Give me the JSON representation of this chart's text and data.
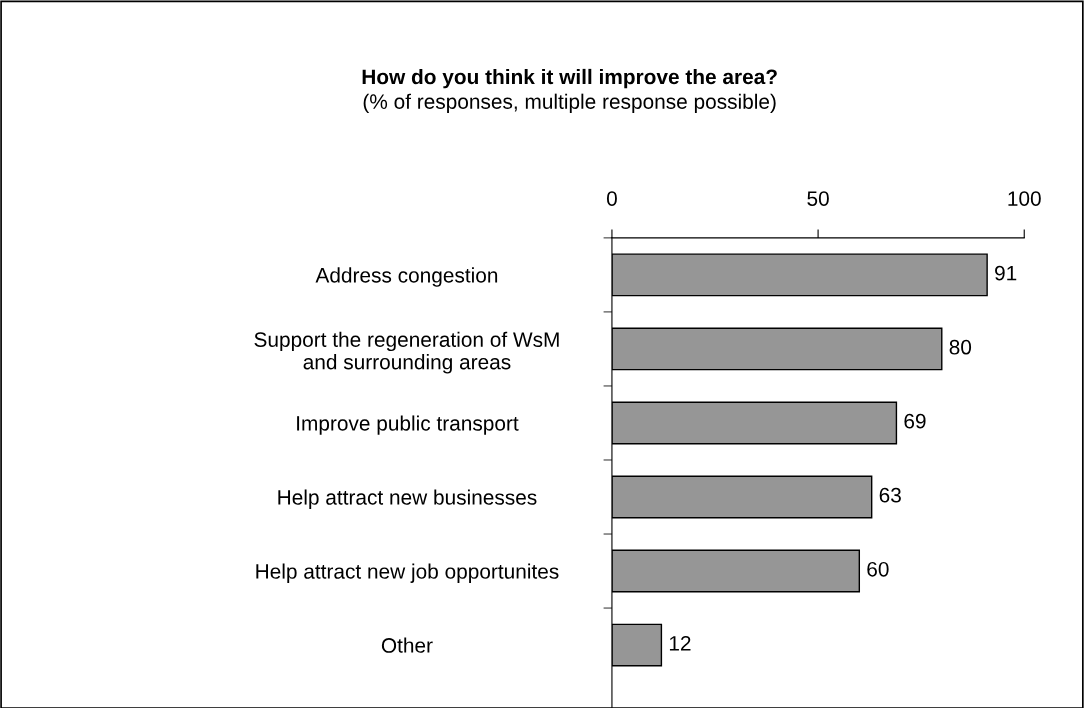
{
  "chart_data": {
    "type": "bar",
    "orientation": "horizontal",
    "title": "How do you think it will improve the area?",
    "subtitle": "(% of responses, multiple response possible)",
    "categories": [
      "Address congestion",
      "Support the regeneration of WsM\nand surrounding areas",
      "Improve public transport",
      "Help attract new businesses",
      "Help attract new job opportunites",
      "Other"
    ],
    "values": [
      91,
      80,
      69,
      63,
      60,
      12
    ],
    "color": "#969696",
    "xlim": [
      0,
      100
    ],
    "xticks": [
      0,
      50,
      100
    ],
    "grid": false,
    "data_labels": true
  }
}
